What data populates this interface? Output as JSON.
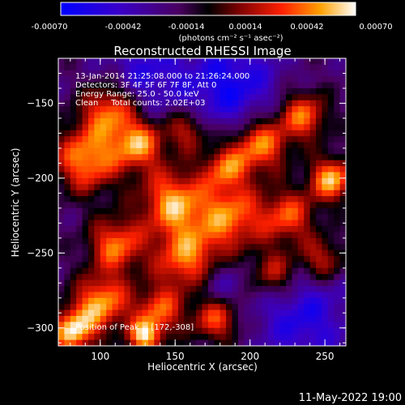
{
  "colorbar": {
    "ticks": [
      "-0.00070",
      "-0.00042",
      "-0.00014",
      "0.00014",
      "0.00042",
      "0.00070"
    ],
    "unit_label": "(photons cm⁻² s⁻¹ asec⁻²)",
    "vmin": -0.0007,
    "vmax": 0.0007
  },
  "chart_data": {
    "type": "heatmap",
    "title": "Reconstructed RHESSI Image",
    "xlabel": "Heliocentric X (arcsec)",
    "ylabel": "Heliocentric Y (arcsec)",
    "xlim": [
      72,
      264
    ],
    "ylim": [
      -312,
      -120
    ],
    "xticks": [
      100,
      150,
      200,
      250
    ],
    "yticks": [
      -150,
      -200,
      -250,
      -300
    ],
    "annotations": [
      "13-Jan-2014 21:25:08.000 to 21:26:24.000",
      "Detectors: 3F 4F 5F 6F 7F 8F, Att 0",
      "Energy Range: 25.0 - 50.0 keV",
      "Clean     Total counts: 2.02E+03"
    ],
    "peak_label": "Position of Peak = [172,-308]",
    "peak": [
      172,
      -308
    ],
    "grid": false
  },
  "footer": {
    "timestamp": "11-May-2022 19:00"
  }
}
